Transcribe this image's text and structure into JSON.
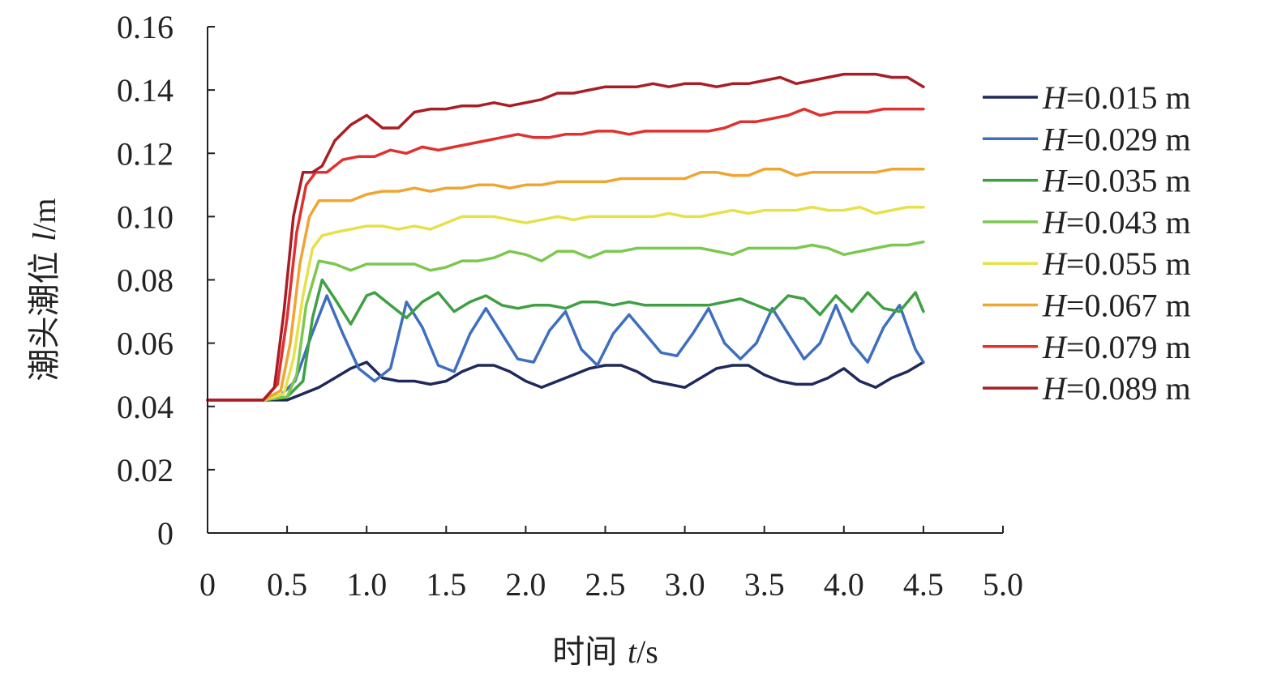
{
  "chart_data": {
    "type": "line",
    "xlabel_prefix": "时间 ",
    "xlabel_var": "t",
    "xlabel_unit": "/s",
    "ylabel_prefix": "潮头潮位 ",
    "ylabel_var": "l",
    "ylabel_unit": "/m",
    "xlim": [
      0,
      5.0
    ],
    "ylim": [
      0,
      0.16
    ],
    "x_ticks": [
      0,
      0.5,
      1.0,
      1.5,
      2.0,
      2.5,
      3.0,
      3.5,
      4.0,
      4.5,
      5.0
    ],
    "x_tick_labels": [
      "0",
      "0.5",
      "1.0",
      "1.5",
      "2.0",
      "2.5",
      "3.0",
      "3.5",
      "4.0",
      "4.5",
      "5.0"
    ],
    "y_ticks": [
      0,
      0.02,
      0.04,
      0.06,
      0.08,
      0.1,
      0.12,
      0.14,
      0.16
    ],
    "y_tick_labels": [
      "0",
      "0.02",
      "0.04",
      "0.06",
      "0.08",
      "0.10",
      "0.12",
      "0.14",
      "0.16"
    ],
    "grid": false,
    "legend_position": "right",
    "legend_var": "H",
    "series": [
      {
        "name": "=0.015 m",
        "color": "#1f2a5a",
        "x": [
          0,
          0.35,
          0.45,
          0.5,
          0.6,
          0.7,
          0.8,
          0.9,
          1.0,
          1.1,
          1.2,
          1.3,
          1.4,
          1.5,
          1.6,
          1.7,
          1.8,
          1.9,
          2.0,
          2.1,
          2.2,
          2.3,
          2.4,
          2.5,
          2.6,
          2.7,
          2.8,
          2.9,
          3.0,
          3.1,
          3.2,
          3.3,
          3.4,
          3.5,
          3.6,
          3.7,
          3.8,
          3.9,
          4.0,
          4.1,
          4.2,
          4.3,
          4.4,
          4.5
        ],
        "y": [
          0.042,
          0.042,
          0.042,
          0.042,
          0.044,
          0.046,
          0.049,
          0.052,
          0.054,
          0.049,
          0.048,
          0.048,
          0.047,
          0.048,
          0.051,
          0.053,
          0.053,
          0.051,
          0.048,
          0.046,
          0.048,
          0.05,
          0.052,
          0.053,
          0.053,
          0.051,
          0.048,
          0.047,
          0.046,
          0.049,
          0.052,
          0.053,
          0.053,
          0.05,
          0.048,
          0.047,
          0.047,
          0.049,
          0.052,
          0.048,
          0.046,
          0.049,
          0.051,
          0.054
        ]
      },
      {
        "name": "=0.029 m",
        "color": "#3e6fbf",
        "x": [
          0,
          0.35,
          0.45,
          0.55,
          0.65,
          0.75,
          0.85,
          0.95,
          1.05,
          1.15,
          1.25,
          1.35,
          1.45,
          1.55,
          1.65,
          1.75,
          1.85,
          1.95,
          2.05,
          2.15,
          2.25,
          2.35,
          2.45,
          2.55,
          2.65,
          2.75,
          2.85,
          2.95,
          3.05,
          3.15,
          3.25,
          3.35,
          3.45,
          3.55,
          3.65,
          3.75,
          3.85,
          3.95,
          4.05,
          4.15,
          4.25,
          4.35,
          4.45,
          4.5
        ],
        "y": [
          0.042,
          0.042,
          0.043,
          0.048,
          0.062,
          0.075,
          0.063,
          0.052,
          0.048,
          0.052,
          0.073,
          0.065,
          0.053,
          0.051,
          0.063,
          0.071,
          0.063,
          0.055,
          0.054,
          0.064,
          0.07,
          0.058,
          0.053,
          0.063,
          0.069,
          0.063,
          0.057,
          0.056,
          0.063,
          0.071,
          0.06,
          0.055,
          0.06,
          0.071,
          0.063,
          0.055,
          0.06,
          0.072,
          0.06,
          0.054,
          0.065,
          0.072,
          0.058,
          0.054
        ]
      },
      {
        "name": "=0.035 m",
        "color": "#3ea043",
        "x": [
          0,
          0.35,
          0.5,
          0.6,
          0.66,
          0.72,
          0.8,
          0.9,
          1.0,
          1.05,
          1.15,
          1.25,
          1.35,
          1.45,
          1.55,
          1.65,
          1.75,
          1.85,
          1.95,
          2.05,
          2.15,
          2.25,
          2.35,
          2.45,
          2.55,
          2.65,
          2.75,
          2.85,
          2.95,
          3.05,
          3.15,
          3.25,
          3.35,
          3.45,
          3.55,
          3.65,
          3.75,
          3.85,
          3.95,
          4.05,
          4.15,
          4.25,
          4.35,
          4.45,
          4.5
        ],
        "y": [
          0.042,
          0.042,
          0.043,
          0.048,
          0.068,
          0.08,
          0.074,
          0.066,
          0.075,
          0.076,
          0.072,
          0.068,
          0.073,
          0.076,
          0.07,
          0.073,
          0.075,
          0.072,
          0.071,
          0.072,
          0.072,
          0.071,
          0.073,
          0.073,
          0.072,
          0.073,
          0.072,
          0.072,
          0.072,
          0.072,
          0.072,
          0.073,
          0.074,
          0.072,
          0.07,
          0.075,
          0.074,
          0.069,
          0.075,
          0.07,
          0.076,
          0.071,
          0.07,
          0.076,
          0.07
        ]
      },
      {
        "name": "=0.043 m",
        "color": "#7cc84f",
        "x": [
          0,
          0.35,
          0.5,
          0.56,
          0.62,
          0.7,
          0.8,
          0.9,
          1.0,
          1.1,
          1.2,
          1.3,
          1.4,
          1.5,
          1.6,
          1.7,
          1.8,
          1.9,
          2.0,
          2.1,
          2.2,
          2.3,
          2.4,
          2.5,
          2.6,
          2.7,
          2.8,
          2.9,
          3.0,
          3.1,
          3.2,
          3.3,
          3.4,
          3.5,
          3.6,
          3.7,
          3.8,
          3.9,
          4.0,
          4.1,
          4.2,
          4.3,
          4.4,
          4.5
        ],
        "y": [
          0.042,
          0.042,
          0.043,
          0.05,
          0.072,
          0.086,
          0.085,
          0.083,
          0.085,
          0.085,
          0.085,
          0.085,
          0.083,
          0.084,
          0.086,
          0.086,
          0.087,
          0.089,
          0.088,
          0.086,
          0.089,
          0.089,
          0.087,
          0.089,
          0.089,
          0.09,
          0.09,
          0.09,
          0.09,
          0.09,
          0.089,
          0.088,
          0.09,
          0.09,
          0.09,
          0.09,
          0.091,
          0.09,
          0.088,
          0.089,
          0.09,
          0.091,
          0.091,
          0.092
        ]
      },
      {
        "name": "=0.055 m",
        "color": "#e6e14a",
        "x": [
          0,
          0.35,
          0.48,
          0.54,
          0.6,
          0.66,
          0.72,
          0.8,
          0.9,
          1.0,
          1.1,
          1.2,
          1.3,
          1.4,
          1.5,
          1.6,
          1.7,
          1.8,
          1.9,
          2.0,
          2.1,
          2.2,
          2.3,
          2.4,
          2.5,
          2.6,
          2.7,
          2.8,
          2.9,
          3.0,
          3.1,
          3.2,
          3.3,
          3.4,
          3.5,
          3.6,
          3.7,
          3.8,
          3.9,
          4.0,
          4.1,
          4.2,
          4.3,
          4.4,
          4.5
        ],
        "y": [
          0.042,
          0.042,
          0.044,
          0.055,
          0.075,
          0.09,
          0.094,
          0.095,
          0.096,
          0.097,
          0.097,
          0.096,
          0.097,
          0.096,
          0.098,
          0.1,
          0.1,
          0.1,
          0.099,
          0.098,
          0.099,
          0.1,
          0.099,
          0.1,
          0.1,
          0.1,
          0.1,
          0.1,
          0.101,
          0.1,
          0.1,
          0.101,
          0.102,
          0.101,
          0.102,
          0.102,
          0.102,
          0.103,
          0.102,
          0.102,
          0.103,
          0.101,
          0.102,
          0.103,
          0.103
        ]
      },
      {
        "name": "=0.067 m",
        "color": "#f0a531",
        "x": [
          0,
          0.35,
          0.46,
          0.52,
          0.58,
          0.64,
          0.7,
          0.8,
          0.9,
          1.0,
          1.1,
          1.2,
          1.3,
          1.4,
          1.5,
          1.6,
          1.7,
          1.8,
          1.9,
          2.0,
          2.1,
          2.2,
          2.3,
          2.4,
          2.5,
          2.6,
          2.7,
          2.8,
          2.9,
          3.0,
          3.1,
          3.2,
          3.3,
          3.4,
          3.5,
          3.6,
          3.7,
          3.8,
          3.9,
          4.0,
          4.1,
          4.2,
          4.3,
          4.4,
          4.5
        ],
        "y": [
          0.042,
          0.042,
          0.045,
          0.06,
          0.085,
          0.1,
          0.105,
          0.105,
          0.105,
          0.107,
          0.108,
          0.108,
          0.109,
          0.108,
          0.109,
          0.109,
          0.11,
          0.11,
          0.109,
          0.11,
          0.11,
          0.111,
          0.111,
          0.111,
          0.111,
          0.112,
          0.112,
          0.112,
          0.112,
          0.112,
          0.114,
          0.114,
          0.113,
          0.113,
          0.115,
          0.115,
          0.113,
          0.114,
          0.114,
          0.114,
          0.114,
          0.114,
          0.115,
          0.115,
          0.115
        ]
      },
      {
        "name": "=0.079 m",
        "color": "#e03030",
        "x": [
          0,
          0.35,
          0.44,
          0.5,
          0.56,
          0.62,
          0.68,
          0.75,
          0.85,
          0.95,
          1.05,
          1.15,
          1.25,
          1.35,
          1.45,
          1.55,
          1.65,
          1.75,
          1.85,
          1.95,
          2.05,
          2.15,
          2.25,
          2.35,
          2.45,
          2.55,
          2.65,
          2.75,
          2.85,
          2.95,
          3.05,
          3.15,
          3.25,
          3.35,
          3.45,
          3.55,
          3.65,
          3.75,
          3.85,
          3.95,
          4.05,
          4.15,
          4.25,
          4.35,
          4.45,
          4.5
        ],
        "y": [
          0.042,
          0.042,
          0.047,
          0.068,
          0.095,
          0.11,
          0.114,
          0.114,
          0.118,
          0.119,
          0.119,
          0.121,
          0.12,
          0.122,
          0.121,
          0.122,
          0.123,
          0.124,
          0.125,
          0.126,
          0.125,
          0.125,
          0.126,
          0.126,
          0.127,
          0.127,
          0.126,
          0.127,
          0.127,
          0.127,
          0.127,
          0.127,
          0.128,
          0.13,
          0.13,
          0.131,
          0.132,
          0.134,
          0.132,
          0.133,
          0.133,
          0.133,
          0.134,
          0.134,
          0.134,
          0.134
        ]
      },
      {
        "name": "=0.089 m",
        "color": "#a81e24",
        "x": [
          0,
          0.35,
          0.42,
          0.48,
          0.54,
          0.6,
          0.66,
          0.72,
          0.8,
          0.9,
          1.0,
          1.1,
          1.2,
          1.3,
          1.4,
          1.5,
          1.6,
          1.7,
          1.8,
          1.9,
          2.0,
          2.1,
          2.2,
          2.3,
          2.4,
          2.5,
          2.6,
          2.7,
          2.8,
          2.9,
          3.0,
          3.1,
          3.2,
          3.3,
          3.4,
          3.5,
          3.6,
          3.7,
          3.8,
          3.9,
          4.0,
          4.1,
          4.2,
          4.3,
          4.4,
          4.5
        ],
        "y": [
          0.042,
          0.042,
          0.046,
          0.07,
          0.1,
          0.114,
          0.114,
          0.116,
          0.124,
          0.129,
          0.132,
          0.128,
          0.128,
          0.133,
          0.134,
          0.134,
          0.135,
          0.135,
          0.136,
          0.135,
          0.136,
          0.137,
          0.139,
          0.139,
          0.14,
          0.141,
          0.141,
          0.141,
          0.142,
          0.141,
          0.142,
          0.142,
          0.141,
          0.142,
          0.142,
          0.143,
          0.144,
          0.142,
          0.143,
          0.144,
          0.145,
          0.145,
          0.145,
          0.144,
          0.144,
          0.141
        ]
      }
    ]
  }
}
